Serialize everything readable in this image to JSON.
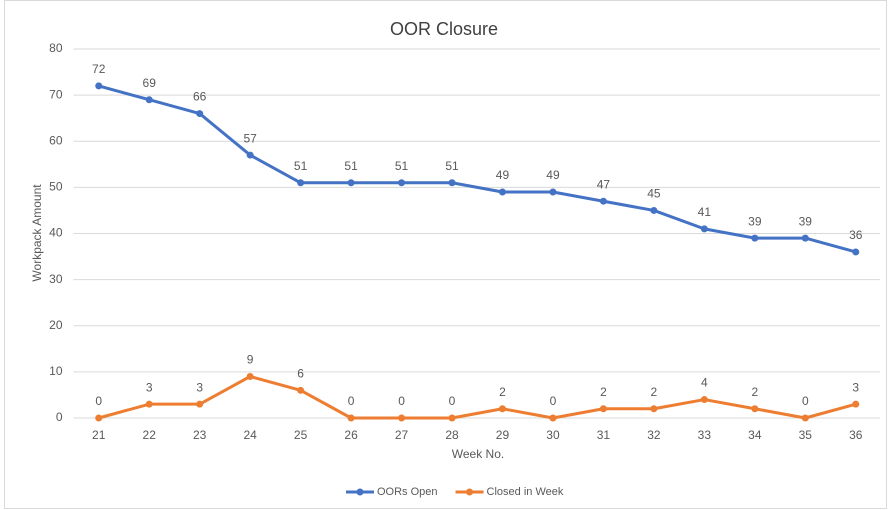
{
  "chart_data": {
    "type": "line",
    "title": "OOR Closure",
    "x_label": "Week No.",
    "y_label": "Workpack Amount",
    "categories": [
      "21",
      "22",
      "23",
      "24",
      "25",
      "26",
      "27",
      "28",
      "29",
      "30",
      "31",
      "32",
      "33",
      "34",
      "35",
      "36"
    ],
    "series": [
      {
        "name": "OORs Open",
        "color": "#4472c4",
        "values": [
          72,
          69,
          66,
          57,
          51,
          51,
          51,
          51,
          49,
          49,
          47,
          45,
          41,
          39,
          39,
          36
        ]
      },
      {
        "name": "Closed in Week",
        "color": "#ed7d31",
        "values": [
          0,
          3,
          3,
          9,
          6,
          0,
          0,
          0,
          2,
          0,
          2,
          2,
          4,
          2,
          0,
          3
        ]
      }
    ],
    "ylim": [
      0,
      80
    ],
    "yticks": [
      0,
      10,
      20,
      30,
      40,
      50,
      60,
      70,
      80
    ],
    "grid": true,
    "legend": "bottom"
  }
}
